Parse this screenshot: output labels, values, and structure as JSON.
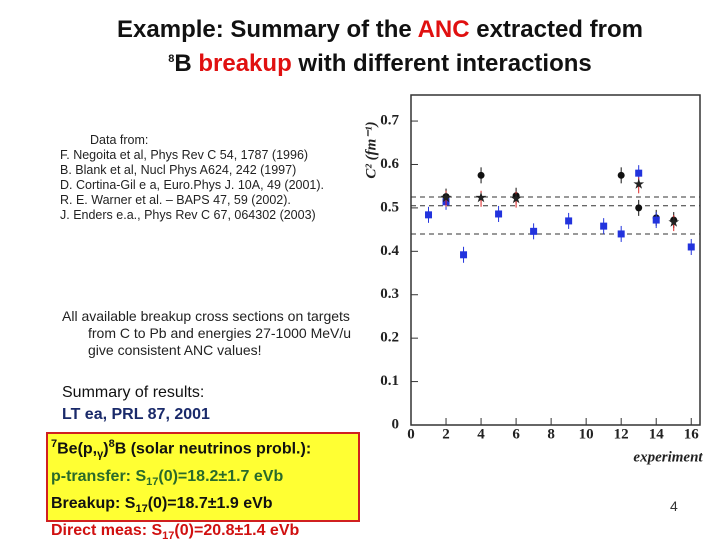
{
  "title": {
    "line1": [
      "Example: Summary of the ",
      "ANC",
      " extracted from"
    ],
    "line2": [
      "8",
      "B ",
      "breakup",
      " with different interactions"
    ]
  },
  "sources": {
    "heading": "Data from:",
    "items": [
      "F. Negoita et al, Phys Rev C 54, 1787 (1996)",
      "B. Blank et al, Nucl Phys A624, 242 (1997)",
      "D. Cortina-Gil e a, Euro.Phys J. 10A, 49 (2001).",
      "R. E. Warner et al. – BAPS 47, 59 (2002).",
      "J. Enders e.a., Phys Rev C 67, 064302 (2003)"
    ]
  },
  "note": "All available breakup cross sections on targets from C to Pb and energies 27-1000 MeV/u give consistent ANC values!",
  "summary": {
    "heading": "Summary of results:",
    "ref": "LT ea, PRL 87, 2001"
  },
  "box": {
    "lines": [
      [
        "7",
        "Be(p,",
        "γ",
        ")",
        "8",
        "B (solar neutrinos probl.):"
      ],
      [
        "p-transfer: S",
        "17",
        "(0)=18.2±1.7 eVb"
      ],
      [
        "Breakup: S",
        "17",
        "(0)=18.7±1.9 eVb"
      ],
      [
        "Direct meas: S",
        "17",
        "(0)=20.8±1.4 eVb"
      ]
    ]
  },
  "page_number": "4",
  "chart_data": {
    "type": "scatter",
    "y_label": "C² (fm⁻¹)",
    "x_label": "experiment",
    "xlim": [
      0,
      16.5
    ],
    "ylim": [
      0,
      0.76
    ],
    "xticks": [
      0,
      2,
      4,
      6,
      8,
      10,
      12,
      14,
      16
    ],
    "yticks": [
      0,
      0.1,
      0.2,
      0.3,
      0.4,
      0.5,
      0.6,
      0.7
    ],
    "reference_lines": [
      0.525,
      0.505,
      0.44
    ],
    "series": [
      {
        "color": "#111111",
        "marker": "circle",
        "x": [
          2,
          4,
          6,
          12,
          13,
          14,
          15
        ],
        "values": [
          0.526,
          0.575,
          0.528,
          0.575,
          0.5,
          0.477,
          0.472
        ]
      },
      {
        "color": "#2233dd",
        "marker": "square",
        "x": [
          1,
          2,
          3,
          5,
          7,
          9,
          11,
          12,
          13,
          14,
          16
        ],
        "values": [
          0.484,
          0.514,
          0.392,
          0.486,
          0.446,
          0.47,
          0.458,
          0.44,
          0.58,
          0.472,
          0.41
        ]
      },
      {
        "color": "#dd2222",
        "marker": "star",
        "x": [
          2,
          4,
          6,
          13,
          15
        ],
        "values": [
          0.521,
          0.521,
          0.519,
          0.552,
          0.465
        ]
      }
    ]
  }
}
